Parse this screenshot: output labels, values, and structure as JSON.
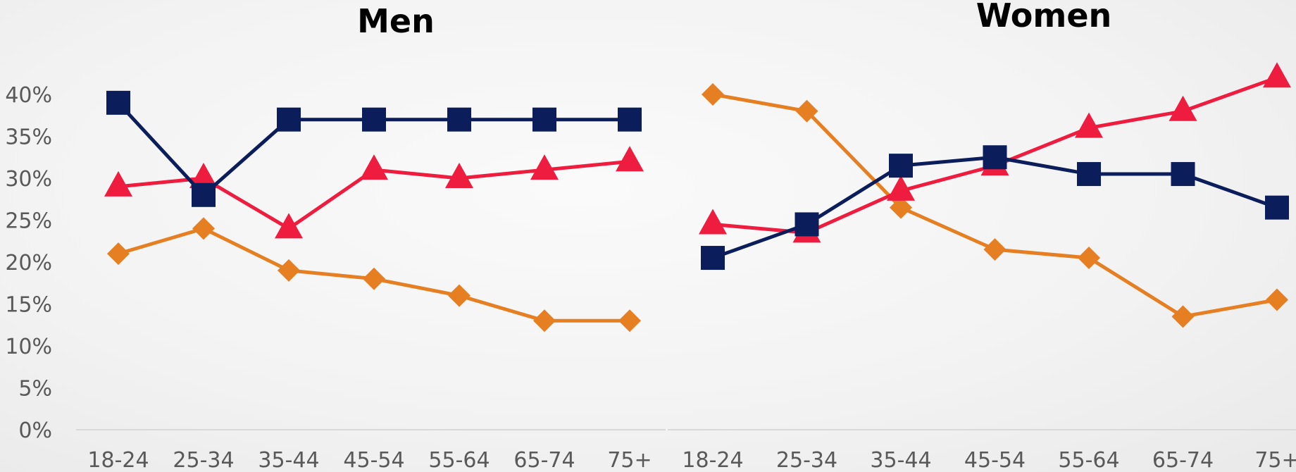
{
  "colors": {
    "orange": "#E67E22",
    "red": "#EE1C3F",
    "navy": "#0B1D5B"
  },
  "y_tick_labels": [
    "0%",
    "5%",
    "10%",
    "15%",
    "20%",
    "25%",
    "30%",
    "35%",
    "40%"
  ],
  "chart_data": [
    {
      "type": "line",
      "title": "Men",
      "categories": [
        "18-24",
        "25-34",
        "35-44",
        "45-54",
        "55-64",
        "65-74",
        "75+"
      ],
      "ylim": [
        0,
        40
      ],
      "grid": false,
      "legend": "none",
      "series": [
        {
          "marker": "diamond",
          "color": "#E67E22",
          "values": [
            21,
            24,
            19,
            18,
            16,
            13,
            13
          ]
        },
        {
          "marker": "triangle",
          "color": "#EE1C3F",
          "values": [
            29,
            30,
            24,
            31,
            30,
            31,
            32
          ]
        },
        {
          "marker": "square",
          "color": "#0B1D5B",
          "values": [
            39,
            28,
            37,
            37,
            37,
            37,
            37
          ]
        }
      ]
    },
    {
      "type": "line",
      "title": "Women",
      "categories": [
        "18-24",
        "25-34",
        "35-44",
        "45-54",
        "55-64",
        "65-74",
        "75+"
      ],
      "ylim": [
        0,
        40
      ],
      "grid": false,
      "legend": "none",
      "series": [
        {
          "marker": "diamond",
          "color": "#E67E22",
          "values": [
            40,
            38,
            26.5,
            21.5,
            20.5,
            13.5,
            15.5
          ]
        },
        {
          "marker": "triangle",
          "color": "#EE1C3F",
          "values": [
            24.5,
            23.5,
            28.5,
            31.5,
            36,
            38,
            42
          ]
        },
        {
          "marker": "square",
          "color": "#0B1D5B",
          "values": [
            20.5,
            24.5,
            31.5,
            32.5,
            30.5,
            30.5,
            26.5
          ]
        }
      ]
    }
  ]
}
